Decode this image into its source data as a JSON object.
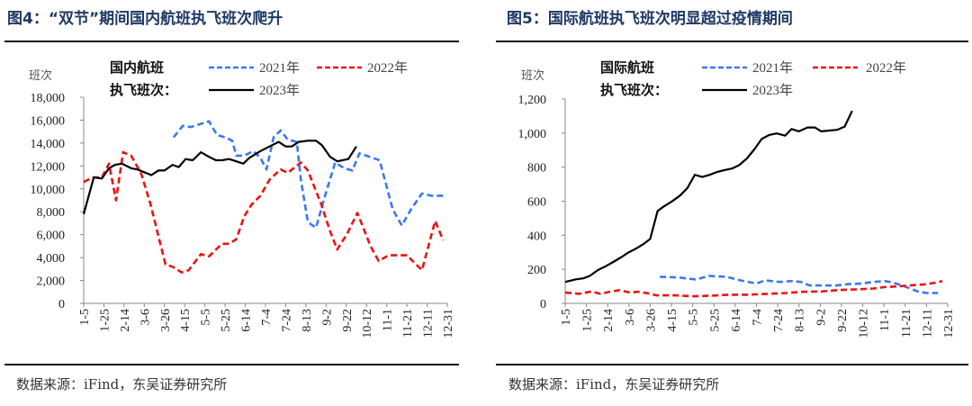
{
  "colors": {
    "title": "#1f3864",
    "y2021": "#3a78f2",
    "y2022": "#ee1111",
    "y2023": "#000000"
  },
  "source": "数据来源：iFind，东吴证券研究所",
  "chart_data": [
    {
      "type": "line",
      "title": "图4：“双节”期间国内航班执飞班次爬升",
      "ylabel": "班次",
      "legend_title": [
        "国内航班",
        "执飞班次："
      ],
      "ylim": [
        0,
        18000
      ],
      "yticks": [
        0,
        2000,
        4000,
        6000,
        8000,
        10000,
        12000,
        14000,
        16000,
        18000
      ],
      "ytick_labels": [
        "0",
        "2,000",
        "4,000",
        "6,000",
        "8,000",
        "10,000",
        "12,000",
        "14,000",
        "16,000",
        "18,000"
      ],
      "x_unit": "days since 1-5",
      "xlim": [
        0,
        360
      ],
      "xtick_labels": [
        "1-5",
        "1-25",
        "2-14",
        "3-6",
        "3-26",
        "4-15",
        "5-5",
        "5-25",
        "6-14",
        "7-4",
        "7-24",
        "8-13",
        "9-2",
        "9-22",
        "10-12",
        "11-1",
        "11-21",
        "12-11",
        "12-31"
      ],
      "series": [
        {
          "name": "2021年",
          "style": "dashed",
          "color": "#3a78f2",
          "points": [
            [
              89,
              14500
            ],
            [
              98,
              15500
            ],
            [
              106,
              15400
            ],
            [
              124,
              15900
            ],
            [
              132,
              14700
            ],
            [
              140,
              14500
            ],
            [
              147,
              14200
            ],
            [
              151,
              12900
            ],
            [
              159,
              12900
            ],
            [
              168,
              13300
            ],
            [
              175,
              12700
            ],
            [
              181,
              11700
            ],
            [
              188,
              14500
            ],
            [
              195,
              15100
            ],
            [
              202,
              14300
            ],
            [
              211,
              14100
            ],
            [
              215,
              10800
            ],
            [
              222,
              7100
            ],
            [
              230,
              6600
            ],
            [
              239,
              9400
            ],
            [
              249,
              12300
            ],
            [
              258,
              11800
            ],
            [
              266,
              11600
            ],
            [
              273,
              13100
            ],
            [
              293,
              12500
            ],
            [
              306,
              8200
            ],
            [
              315,
              6800
            ],
            [
              324,
              8200
            ],
            [
              335,
              9600
            ],
            [
              344,
              9400
            ],
            [
              356,
              9400
            ]
          ]
        },
        {
          "name": "2022年",
          "style": "dashed",
          "color": "#ee1111",
          "points": [
            [
              0,
              10600
            ],
            [
              9,
              11000
            ],
            [
              18,
              11000
            ],
            [
              25,
              12200
            ],
            [
              32,
              9000
            ],
            [
              39,
              13200
            ],
            [
              47,
              12900
            ],
            [
              57,
              11300
            ],
            [
              66,
              8700
            ],
            [
              75,
              5500
            ],
            [
              81,
              3400
            ],
            [
              88,
              3200
            ],
            [
              97,
              2700
            ],
            [
              104,
              2900
            ],
            [
              116,
              4300
            ],
            [
              124,
              4100
            ],
            [
              131,
              4700
            ],
            [
              137,
              5200
            ],
            [
              144,
              5200
            ],
            [
              151,
              5600
            ],
            [
              159,
              7600
            ],
            [
              166,
              8600
            ],
            [
              175,
              9400
            ],
            [
              184,
              10800
            ],
            [
              195,
              11700
            ],
            [
              202,
              11400
            ],
            [
              215,
              12300
            ],
            [
              222,
              11600
            ],
            [
              235,
              8700
            ],
            [
              244,
              6300
            ],
            [
              251,
              4700
            ],
            [
              261,
              6100
            ],
            [
              271,
              7900
            ],
            [
              284,
              5000
            ],
            [
              292,
              3700
            ],
            [
              302,
              4200
            ],
            [
              320,
              4200
            ],
            [
              335,
              2900
            ],
            [
              348,
              7200
            ],
            [
              356,
              5500
            ]
          ]
        },
        {
          "name": "2023年",
          "style": "solid",
          "color": "#000000",
          "points": [
            [
              0,
              7800
            ],
            [
              10,
              11000
            ],
            [
              18,
              10900
            ],
            [
              25,
              11800
            ],
            [
              31,
              12100
            ],
            [
              38,
              12200
            ],
            [
              47,
              11800
            ],
            [
              53,
              11700
            ],
            [
              67,
              11200
            ],
            [
              74,
              11600
            ],
            [
              80,
              11600
            ],
            [
              88,
              12100
            ],
            [
              94,
              11900
            ],
            [
              101,
              12600
            ],
            [
              108,
              12500
            ],
            [
              116,
              13200
            ],
            [
              124,
              12800
            ],
            [
              131,
              12500
            ],
            [
              137,
              12500
            ],
            [
              144,
              12600
            ],
            [
              151,
              12400
            ],
            [
              158,
              12200
            ],
            [
              164,
              12700
            ],
            [
              175,
              13300
            ],
            [
              184,
              13700
            ],
            [
              193,
              14100
            ],
            [
              200,
              13700
            ],
            [
              206,
              13700
            ],
            [
              213,
              14100
            ],
            [
              222,
              14200
            ],
            [
              230,
              14200
            ],
            [
              236,
              13800
            ],
            [
              244,
              12800
            ],
            [
              251,
              12400
            ],
            [
              262,
              12600
            ],
            [
              270,
              13700
            ]
          ]
        }
      ]
    },
    {
      "type": "line",
      "title": "图5：国际航班执飞班次明显超过疫情期间",
      "ylabel": "班次",
      "legend_title": [
        "国际航班",
        "执飞班次："
      ],
      "ylim": [
        0,
        1200
      ],
      "yticks": [
        0,
        200,
        400,
        600,
        800,
        1000,
        1200
      ],
      "ytick_labels": [
        "0",
        "200",
        "400",
        "600",
        "800",
        "1,000",
        "1,200"
      ],
      "x_unit": "days since 1-5",
      "xlim": [
        0,
        360
      ],
      "xtick_labels": [
        "1-5",
        "1-25",
        "2-14",
        "3-6",
        "3-26",
        "4-15",
        "5-5",
        "5-25",
        "6-14",
        "7-4",
        "7-24",
        "8-13",
        "9-2",
        "9-22",
        "10-12",
        "11-1",
        "11-21",
        "12-11",
        "12-31"
      ],
      "series": [
        {
          "name": "2021年",
          "style": "dashed",
          "color": "#3a78f2",
          "points": [
            [
              89,
              156
            ],
            [
              106,
              153
            ],
            [
              123,
              140
            ],
            [
              135,
              161
            ],
            [
              152,
              156
            ],
            [
              165,
              135
            ],
            [
              180,
              117
            ],
            [
              188,
              135
            ],
            [
              202,
              126
            ],
            [
              213,
              131
            ],
            [
              222,
              126
            ],
            [
              230,
              105
            ],
            [
              256,
              105
            ],
            [
              264,
              112
            ],
            [
              279,
              117
            ],
            [
              290,
              126
            ],
            [
              301,
              131
            ],
            [
              309,
              121
            ],
            [
              321,
              96
            ],
            [
              332,
              70
            ],
            [
              340,
              61
            ],
            [
              351,
              61
            ]
          ]
        },
        {
          "name": "2022年",
          "style": "dashed",
          "color": "#ee1111",
          "points": [
            [
              0,
              64
            ],
            [
              13,
              56
            ],
            [
              25,
              70
            ],
            [
              33,
              56
            ],
            [
              42,
              68
            ],
            [
              51,
              77
            ],
            [
              61,
              64
            ],
            [
              69,
              68
            ],
            [
              78,
              59
            ],
            [
              86,
              47
            ],
            [
              103,
              47
            ],
            [
              120,
              42
            ],
            [
              137,
              45
            ],
            [
              154,
              51
            ],
            [
              171,
              51
            ],
            [
              191,
              56
            ],
            [
              208,
              61
            ],
            [
              224,
              68
            ],
            [
              241,
              70
            ],
            [
              258,
              79
            ],
            [
              273,
              82
            ],
            [
              290,
              87
            ],
            [
              301,
              96
            ],
            [
              313,
              100
            ],
            [
              324,
              105
            ],
            [
              340,
              112
            ],
            [
              355,
              130
            ]
          ]
        },
        {
          "name": "2023年",
          "style": "solid",
          "color": "#000000",
          "points": [
            [
              0,
              126
            ],
            [
              10,
              141
            ],
            [
              17,
              147
            ],
            [
              23,
              161
            ],
            [
              31,
              196
            ],
            [
              38,
              218
            ],
            [
              46,
              246
            ],
            [
              53,
              272
            ],
            [
              59,
              297
            ],
            [
              67,
              323
            ],
            [
              74,
              350
            ],
            [
              80,
              378
            ],
            [
              87,
              543
            ],
            [
              93,
              570
            ],
            [
              101,
              601
            ],
            [
              108,
              633
            ],
            [
              115,
              677
            ],
            [
              122,
              755
            ],
            [
              129,
              742
            ],
            [
              136,
              755
            ],
            [
              143,
              772
            ],
            [
              150,
              783
            ],
            [
              157,
              792
            ],
            [
              164,
              813
            ],
            [
              171,
              851
            ],
            [
              178,
              904
            ],
            [
              185,
              966
            ],
            [
              192,
              989
            ],
            [
              199,
              998
            ],
            [
              207,
              985
            ],
            [
              213,
              1024
            ],
            [
              220,
              1010
            ],
            [
              228,
              1033
            ],
            [
              235,
              1033
            ],
            [
              241,
              1010
            ],
            [
              256,
              1019
            ],
            [
              263,
              1038
            ],
            [
              270,
              1130
            ]
          ]
        }
      ]
    }
  ]
}
